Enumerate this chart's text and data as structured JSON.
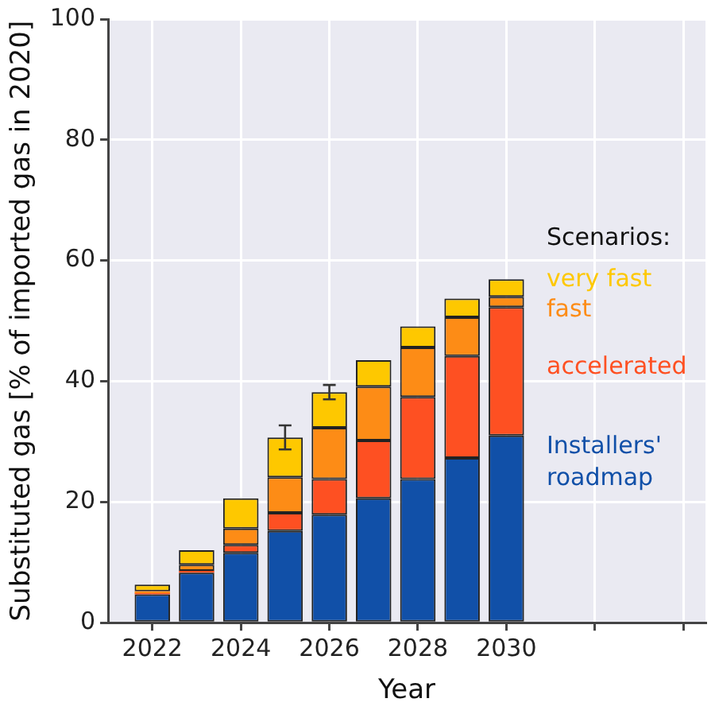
{
  "chart_data": {
    "type": "bar",
    "stacked": true,
    "xlabel": "Year",
    "ylabel": "Substituted gas [% of imported gas in 2020]",
    "legend_title": "Scenarios:",
    "legend": "right",
    "x": [
      2022,
      2023,
      2024,
      2025,
      2026,
      2027,
      2028,
      2029,
      2030
    ],
    "xlim": [
      2021,
      2034.5
    ],
    "xticks": [
      2022,
      2024,
      2026,
      2028,
      2030,
      {
        "value": 2032,
        "label": null
      },
      {
        "value": 2034,
        "label": null
      }
    ],
    "ylim": [
      0,
      100
    ],
    "yticks": [
      0,
      20,
      40,
      60,
      80,
      100
    ],
    "grid": true,
    "series": [
      {
        "name": "Installers' roadmap",
        "color": "#1150a8",
        "values": [
          4.7,
          8.3,
          11.6,
          15.2,
          17.9,
          20.6,
          23.8,
          27.3,
          31.0
        ]
      },
      {
        "name": "accelerated",
        "color": "#fe5022",
        "values": [
          0.2,
          0.3,
          1.3,
          3.0,
          5.9,
          9.6,
          13.6,
          16.9,
          21.3
        ]
      },
      {
        "name": "fast",
        "color": "#fd8c16",
        "values": [
          0.3,
          1.0,
          2.7,
          5.9,
          8.5,
          8.9,
          8.2,
          6.4,
          1.7
        ]
      },
      {
        "name": "very fast",
        "color": "#fec800",
        "values": [
          1.1,
          2.4,
          5.0,
          6.6,
          5.9,
          4.4,
          3.5,
          3.1,
          2.9
        ],
        "errors": [
          null,
          null,
          null,
          2.0,
          1.2,
          null,
          null,
          null,
          null
        ]
      }
    ]
  }
}
